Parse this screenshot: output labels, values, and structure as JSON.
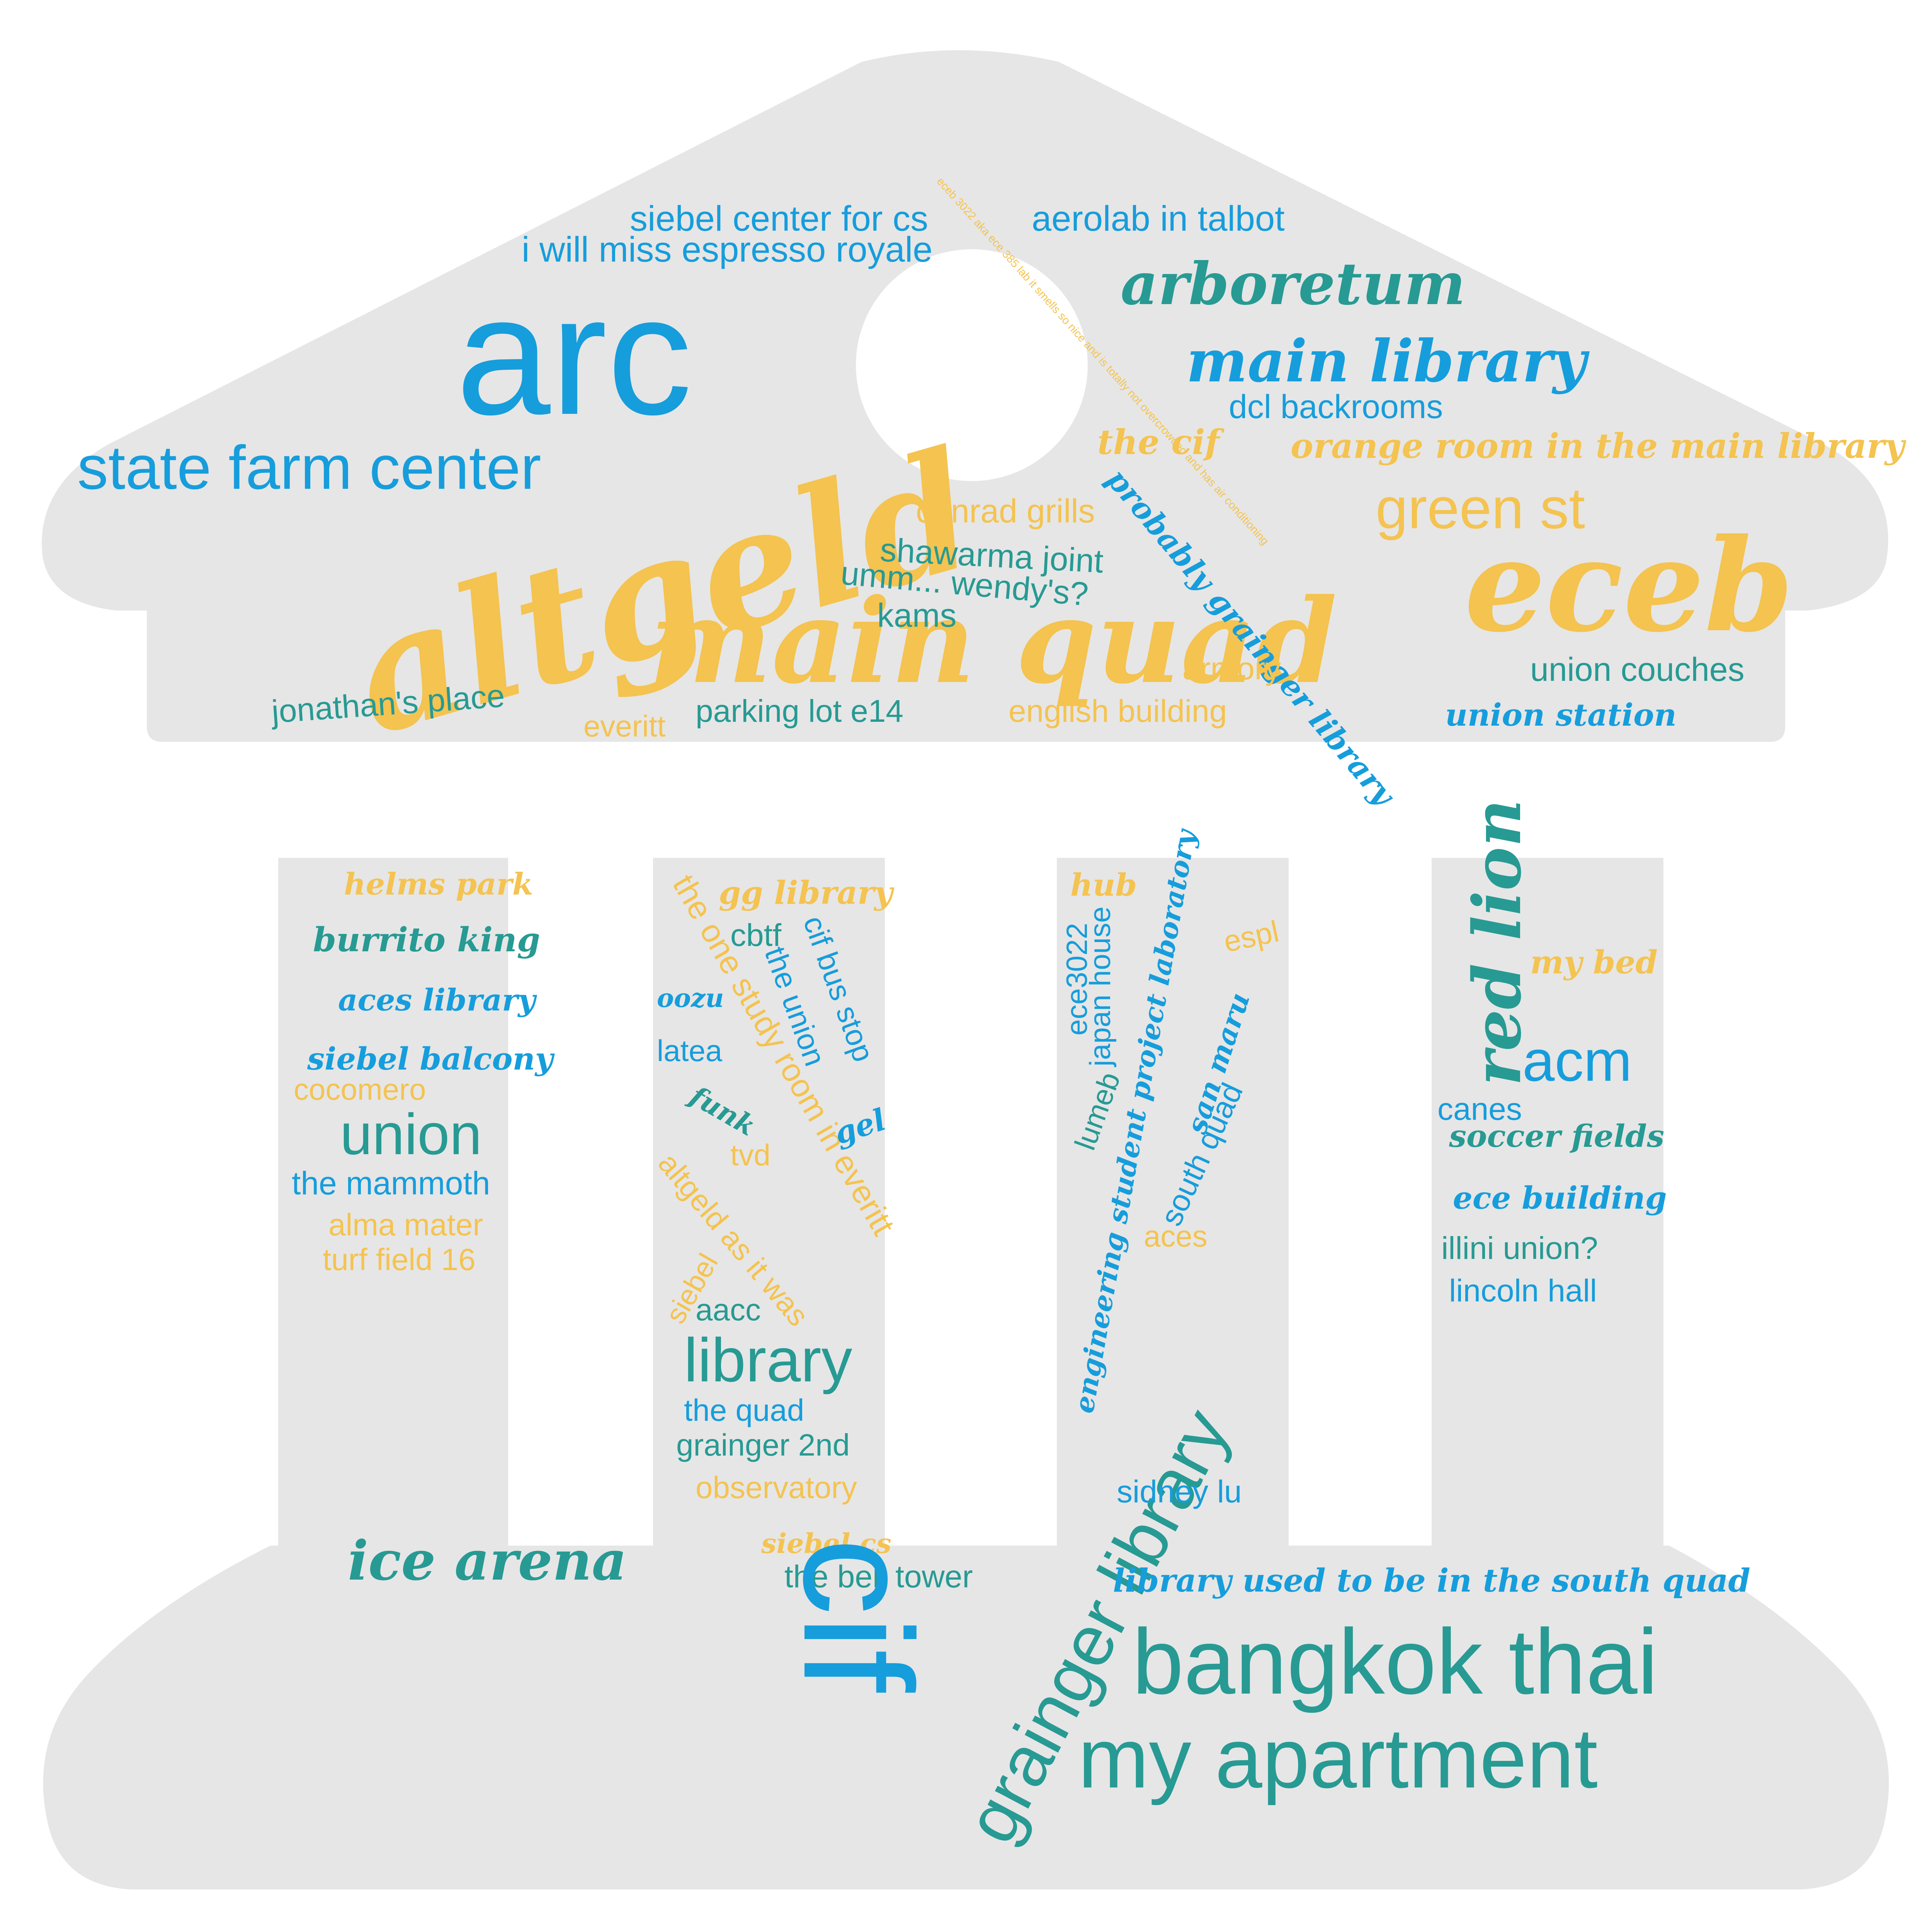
{
  "colors": {
    "background": "#ffffff",
    "shape_fill": "#e6e6e6",
    "blue": "#169ddc",
    "teal": "#279a93",
    "yellow": "#f4c350"
  },
  "words": [
    {
      "text": "arc",
      "color": "blue",
      "style": "sans"
    },
    {
      "text": "altgeld",
      "color": "yellow",
      "style": "script"
    },
    {
      "text": "main quad",
      "color": "yellow",
      "style": "script"
    },
    {
      "text": "eceb",
      "color": "yellow",
      "style": "script"
    },
    {
      "text": "state farm center",
      "color": "blue",
      "style": "sans"
    },
    {
      "text": "siebel center for cs",
      "color": "blue",
      "style": "sans"
    },
    {
      "text": "i will miss espresso royale",
      "color": "blue",
      "style": "sans"
    },
    {
      "text": "aerolab in talbot",
      "color": "blue",
      "style": "sans"
    },
    {
      "text": "arboretum",
      "color": "teal",
      "style": "script"
    },
    {
      "text": "main library",
      "color": "blue",
      "style": "script"
    },
    {
      "text": "dcl backrooms",
      "color": "blue",
      "style": "sans"
    },
    {
      "text": "the cif",
      "color": "yellow",
      "style": "script"
    },
    {
      "text": "orange room in the main library",
      "color": "yellow",
      "style": "script"
    },
    {
      "text": "green st",
      "color": "yellow",
      "style": "sans"
    },
    {
      "text": "probably grainger library",
      "color": "blue",
      "style": "script"
    },
    {
      "text": "eceb 3022 aka ece 385 lab it smells so nice and is totally not overcrowded and has air conditioning",
      "color": "yellow",
      "style": "sans"
    },
    {
      "text": "conrad grills",
      "color": "yellow",
      "style": "sans"
    },
    {
      "text": "shawarma joint",
      "color": "teal",
      "style": "sans"
    },
    {
      "text": "umm... wendy's?",
      "color": "teal",
      "style": "sans"
    },
    {
      "text": "kams",
      "color": "teal",
      "style": "sans"
    },
    {
      "text": "armory",
      "color": "yellow",
      "style": "sans"
    },
    {
      "text": "union couches",
      "color": "teal",
      "style": "sans"
    },
    {
      "text": "union station",
      "color": "blue",
      "style": "script"
    },
    {
      "text": "jonathan's place",
      "color": "teal",
      "style": "sans"
    },
    {
      "text": "everitt",
      "color": "yellow",
      "style": "sans"
    },
    {
      "text": "parking lot e14",
      "color": "teal",
      "style": "sans"
    },
    {
      "text": "english building",
      "color": "yellow",
      "style": "sans"
    },
    {
      "text": "helms park",
      "color": "yellow",
      "style": "script"
    },
    {
      "text": "burrito king",
      "color": "teal",
      "style": "script"
    },
    {
      "text": "aces library",
      "color": "blue",
      "style": "script"
    },
    {
      "text": "siebel balcony",
      "color": "blue",
      "style": "script"
    },
    {
      "text": "cocomero",
      "color": "yellow",
      "style": "sans"
    },
    {
      "text": "union",
      "color": "teal",
      "style": "sans"
    },
    {
      "text": "the mammoth",
      "color": "blue",
      "style": "sans"
    },
    {
      "text": "alma mater",
      "color": "yellow",
      "style": "sans"
    },
    {
      "text": "turf field 16",
      "color": "yellow",
      "style": "sans"
    },
    {
      "text": "gg library",
      "color": "yellow",
      "style": "script"
    },
    {
      "text": "the one study room in everitt",
      "color": "yellow",
      "style": "sans"
    },
    {
      "text": "cbtf",
      "color": "teal",
      "style": "sans"
    },
    {
      "text": "cif bus stop",
      "color": "blue",
      "style": "sans"
    },
    {
      "text": "the union",
      "color": "blue",
      "style": "sans"
    },
    {
      "text": "oozu",
      "color": "blue",
      "style": "script"
    },
    {
      "text": "latea",
      "color": "blue",
      "style": "sans"
    },
    {
      "text": "funk",
      "color": "teal",
      "style": "script"
    },
    {
      "text": "gel",
      "color": "blue",
      "style": "script"
    },
    {
      "text": "tvd",
      "color": "yellow",
      "style": "sans"
    },
    {
      "text": "altgeld as it was",
      "color": "yellow",
      "style": "sans"
    },
    {
      "text": "siebel",
      "color": "yellow",
      "style": "sans"
    },
    {
      "text": "aacc",
      "color": "teal",
      "style": "sans"
    },
    {
      "text": "library",
      "color": "teal",
      "style": "sans"
    },
    {
      "text": "the quad",
      "color": "blue",
      "style": "sans"
    },
    {
      "text": "grainger 2nd",
      "color": "teal",
      "style": "sans"
    },
    {
      "text": "observatory",
      "color": "yellow",
      "style": "sans"
    },
    {
      "text": "siebel cs",
      "color": "yellow",
      "style": "script"
    },
    {
      "text": "the bell tower",
      "color": "teal",
      "style": "sans"
    },
    {
      "text": "hub",
      "color": "yellow",
      "style": "script"
    },
    {
      "text": "ece3022",
      "color": "blue",
      "style": "sans"
    },
    {
      "text": "japan house",
      "color": "blue",
      "style": "sans"
    },
    {
      "text": "engineering student project laboratory",
      "color": "blue",
      "style": "script"
    },
    {
      "text": "espl",
      "color": "yellow",
      "style": "sans"
    },
    {
      "text": "san maru",
      "color": "blue",
      "style": "script"
    },
    {
      "text": "lumeb",
      "color": "teal",
      "style": "sans"
    },
    {
      "text": "south quad",
      "color": "blue",
      "style": "sans"
    },
    {
      "text": "aces",
      "color": "yellow",
      "style": "sans"
    },
    {
      "text": "grainger library",
      "color": "teal",
      "style": "sans"
    },
    {
      "text": "sidney lu",
      "color": "blue",
      "style": "sans"
    },
    {
      "text": "red lion",
      "color": "teal",
      "style": "script"
    },
    {
      "text": "my bed",
      "color": "yellow",
      "style": "script"
    },
    {
      "text": "acm",
      "color": "blue",
      "style": "sans"
    },
    {
      "text": "canes",
      "color": "blue",
      "style": "sans"
    },
    {
      "text": "soccer fields",
      "color": "teal",
      "style": "script"
    },
    {
      "text": "ece building",
      "color": "blue",
      "style": "script"
    },
    {
      "text": "illini union?",
      "color": "teal",
      "style": "sans"
    },
    {
      "text": "lincoln hall",
      "color": "blue",
      "style": "sans"
    },
    {
      "text": "ice arena",
      "color": "teal",
      "style": "script"
    },
    {
      "text": "cif",
      "color": "blue",
      "style": "sans"
    },
    {
      "text": "library used to be in the south quad",
      "color": "blue",
      "style": "script"
    },
    {
      "text": "bangkok thai",
      "color": "teal",
      "style": "sans"
    },
    {
      "text": "my apartment",
      "color": "teal",
      "style": "sans"
    }
  ]
}
